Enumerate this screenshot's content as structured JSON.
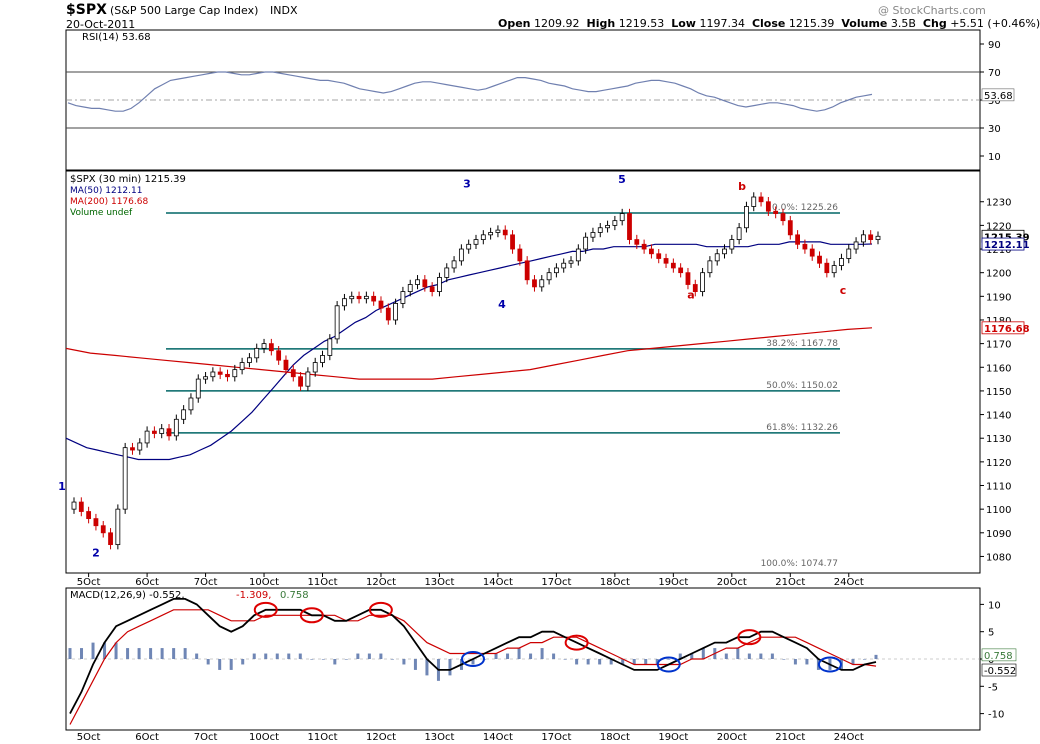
{
  "header": {
    "symbol": "$SPX",
    "name": "(S&P 500 Large Cap Index)",
    "exchange": "INDX",
    "date": "20-Oct-2011",
    "watermark": "@ StockCharts.com",
    "open_label": "Open",
    "open": "1209.92",
    "high_label": "High",
    "high": "1219.53",
    "low_label": "Low",
    "low": "1197.34",
    "close_label": "Close",
    "close": "1215.39",
    "volume_label": "Volume",
    "volume": "3.5B",
    "chg_label": "Chg",
    "chg": "+5.51 (+0.46%)"
  },
  "colors": {
    "up": "#000000",
    "down": "#cc0000",
    "ma50": "#000080",
    "ma200": "#cc0000",
    "fib": "#006666",
    "wave": "#0000aa",
    "wave_corr": "#cc0000",
    "rsi": "#7080b0",
    "hist": "#6f86b5"
  },
  "chart_data": [
    {
      "panel": "rsi",
      "type": "line",
      "legend": "RSI(14) 53.68",
      "current_label": "53.68",
      "ylim": [
        0,
        100
      ],
      "y_ticks": [
        10,
        30,
        50,
        70,
        90
      ],
      "ref_lines": [
        30,
        50,
        70
      ],
      "values": [
        48,
        46,
        45,
        44,
        44,
        43,
        42,
        42,
        44,
        48,
        53,
        58,
        61,
        64,
        65,
        66,
        67,
        68,
        69,
        70,
        70,
        69,
        68,
        68,
        69,
        70,
        70,
        69,
        68,
        67,
        66,
        65,
        64,
        64,
        63,
        62,
        60,
        58,
        57,
        56,
        55,
        56,
        58,
        60,
        62,
        63,
        63,
        62,
        61,
        60,
        59,
        58,
        57,
        58,
        60,
        62,
        64,
        66,
        66,
        65,
        64,
        62,
        61,
        60,
        58,
        57,
        56,
        56,
        57,
        58,
        59,
        60,
        62,
        63,
        64,
        64,
        63,
        62,
        60,
        58,
        55,
        53,
        52,
        50,
        48,
        46,
        45,
        46,
        47,
        48,
        48,
        47,
        46,
        44,
        43,
        42,
        43,
        45,
        48,
        50,
        52,
        53,
        54
      ]
    },
    {
      "panel": "price",
      "type": "candlestick",
      "legend": "$SPX (30 min) 1215.39",
      "ylim": [
        1073,
        1243
      ],
      "y_ticks": [
        1080,
        1090,
        1100,
        1110,
        1120,
        1130,
        1140,
        1150,
        1160,
        1170,
        1180,
        1190,
        1200,
        1210,
        1220,
        1230
      ],
      "x_labels": [
        "5Oct",
        "6Oct",
        "7Oct",
        "10Oct",
        "11Oct",
        "12Oct",
        "13Oct",
        "14Oct",
        "17Oct",
        "18Oct",
        "19Oct",
        "20Oct",
        "21Oct",
        "24Oct"
      ],
      "x_label_index": [
        2,
        10,
        18,
        26,
        34,
        42,
        50,
        58,
        66,
        74,
        82,
        90,
        98,
        106
      ],
      "close_label": "1215.39",
      "close": [
        1103,
        1099,
        1096,
        1093,
        1090,
        1085,
        1100,
        1126,
        1125,
        1128,
        1133,
        1132,
        1134,
        1131,
        1138,
        1142,
        1147,
        1155,
        1156,
        1158,
        1157,
        1156,
        1159,
        1162,
        1164,
        1168,
        1170,
        1167,
        1163,
        1159,
        1156,
        1152,
        1158,
        1162,
        1165,
        1172,
        1186,
        1189,
        1190,
        1189,
        1190,
        1188,
        1185,
        1180,
        1187,
        1192,
        1195,
        1197,
        1194,
        1192,
        1198,
        1202,
        1205,
        1210,
        1212,
        1214,
        1216,
        1217,
        1218,
        1216,
        1210,
        1205,
        1197,
        1194,
        1197,
        1200,
        1202,
        1204,
        1205,
        1210,
        1215,
        1217,
        1219,
        1220,
        1222,
        1225,
        1214,
        1212,
        1210,
        1208,
        1206,
        1204,
        1202,
        1200,
        1195,
        1192,
        1200,
        1205,
        1208,
        1210,
        1214,
        1219,
        1228,
        1232,
        1230,
        1226,
        1225,
        1222,
        1216,
        1212,
        1210,
        1207,
        1204,
        1200,
        1203,
        1206,
        1210,
        1213,
        1216,
        1214,
        1215.39
      ],
      "series": [
        {
          "name": "MA(50) 1212.11",
          "current_label": "1212.11",
          "values": [
            1130,
            1128,
            1126,
            1125,
            1124,
            1123,
            1122,
            1121,
            1121,
            1121,
            1121,
            1122,
            1123,
            1125,
            1127,
            1130,
            1133,
            1137,
            1141,
            1146,
            1151,
            1156,
            1161,
            1165,
            1168,
            1171,
            1173,
            1176,
            1179,
            1181,
            1184,
            1186,
            1188,
            1190,
            1192,
            1194,
            1195,
            1197,
            1198,
            1199,
            1200,
            1201,
            1202,
            1203,
            1204,
            1205,
            1206,
            1207,
            1208,
            1209,
            1209,
            1210,
            1210,
            1211,
            1211,
            1211,
            1211,
            1212,
            1212,
            1212,
            1212,
            1212,
            1211,
            1211,
            1211,
            1211,
            1211,
            1212,
            1212,
            1212,
            1213,
            1213,
            1213,
            1213,
            1212,
            1212,
            1212,
            1212,
            1212.11
          ]
        },
        {
          "name": "MA(200) 1176.68",
          "current_label": "1176.68",
          "values": [
            1168,
            1166,
            1165,
            1164,
            1163,
            1162,
            1161,
            1160,
            1159,
            1158,
            1157,
            1156,
            1155,
            1155,
            1155,
            1155,
            1156,
            1157,
            1158,
            1159,
            1161,
            1163,
            1165,
            1167,
            1168,
            1169,
            1170,
            1171,
            1172,
            1173,
            1174,
            1175,
            1176,
            1176.68
          ]
        },
        {
          "name": "Volume undef"
        }
      ],
      "fib_levels": [
        {
          "label": "0.0%: 1225.26",
          "value": 1225.26
        },
        {
          "label": "38.2%: 1167.78",
          "value": 1167.78
        },
        {
          "label": "50.0%: 1150.02",
          "value": 1150.02
        },
        {
          "label": "61.8%: 1132.26",
          "value": 1132.26
        },
        {
          "label": "100.0%: 1074.77",
          "value": 1074.77
        }
      ],
      "wave_labels": [
        "1",
        "2",
        "3",
        "4",
        "5",
        "a",
        "b",
        "c"
      ]
    },
    {
      "panel": "macd",
      "type": "line",
      "legend_macd": "MACD(12,26,9) -0.552,",
      "legend_signal": "-1.309,",
      "legend_hist": "0.758",
      "ylim": [
        -13,
        13
      ],
      "y_ticks": [
        10,
        5,
        0,
        -5,
        -10
      ],
      "labels_right": [
        "0.758",
        "-0.552"
      ],
      "macd": [
        -10,
        -6,
        -1,
        3,
        6,
        7,
        8,
        9,
        10,
        11,
        11,
        10,
        8,
        6,
        5,
        6,
        8,
        9,
        9,
        9,
        9,
        8,
        8,
        7,
        7,
        8,
        9,
        9,
        8,
        6,
        3,
        0,
        -2,
        -2,
        -1,
        0,
        1,
        2,
        3,
        4,
        4,
        5,
        5,
        4,
        3,
        2,
        1,
        0,
        -1,
        -2,
        -2,
        -2,
        -1,
        0,
        1,
        2,
        3,
        3,
        4,
        4,
        5,
        5,
        4,
        3,
        2,
        0,
        -1,
        -2,
        -2,
        -1,
        -0.552
      ],
      "signal": [
        -12,
        -8,
        -4,
        0,
        3,
        5,
        6,
        7,
        8,
        9,
        9,
        9,
        9,
        8,
        7,
        7,
        7,
        8,
        8,
        8,
        8,
        8,
        8,
        8,
        7,
        7,
        8,
        8,
        8,
        7,
        5,
        3,
        2,
        1,
        1,
        1,
        1,
        1,
        2,
        2,
        3,
        3,
        4,
        4,
        4,
        3,
        2,
        1,
        0,
        -1,
        -1,
        -1,
        -1,
        -1,
        0,
        0,
        1,
        2,
        2,
        3,
        4,
        4,
        4,
        4,
        3,
        2,
        1,
        0,
        -1,
        -1,
        -1.309
      ]
    }
  ]
}
